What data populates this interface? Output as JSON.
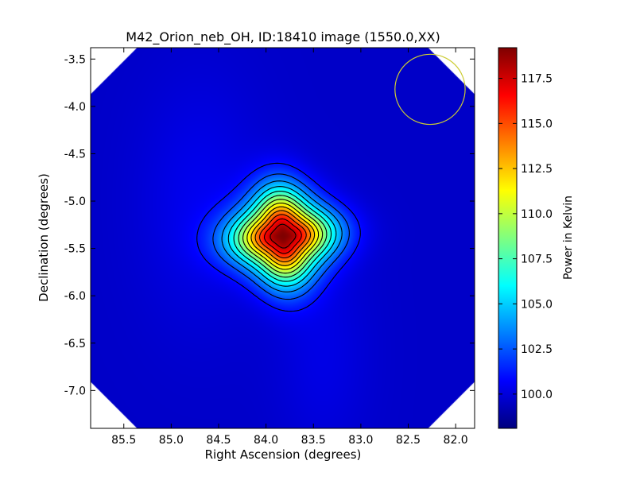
{
  "chart_data": {
    "type": "heatmap",
    "title": "M42_Orion_neb_OH, ID:18410 image (1550.0,XX)",
    "xlabel": "Right Ascension (degrees)",
    "ylabel": "Declination (degrees)",
    "colorbar_label": "Power in Kelvin",
    "colormap": "jet",
    "xlim": [
      85.85,
      81.8
    ],
    "ylim": [
      -7.4,
      -3.38
    ],
    "x_ticks": [
      85.5,
      85.0,
      84.5,
      84.0,
      83.5,
      83.0,
      82.5,
      82.0
    ],
    "x_tick_labels": [
      "85.5",
      "85.0",
      "84.5",
      "84.0",
      "83.5",
      "83.0",
      "82.5",
      "82.0"
    ],
    "y_ticks": [
      -3.5,
      -4.0,
      -4.5,
      -5.0,
      -5.5,
      -6.0,
      -6.5,
      -7.0
    ],
    "y_tick_labels": [
      "-3.5",
      "-4.0",
      "-4.5",
      "-5.0",
      "-5.5",
      "-6.0",
      "-6.5",
      "-7.0"
    ],
    "colorbar_range": [
      98.1,
      119.2
    ],
    "colorbar_ticks": [
      100.0,
      102.5,
      105.0,
      107.5,
      110.0,
      112.5,
      115.0,
      117.5
    ],
    "colorbar_tick_labels": [
      "100.0",
      "102.5",
      "105.0",
      "107.5",
      "110.0",
      "112.5",
      "115.0",
      "117.5"
    ],
    "background_level": 99.6,
    "source": {
      "ra": 83.82,
      "dec": -5.37,
      "peak": 119.0,
      "sigma_ra": 0.32,
      "sigma_dec": 0.3
    },
    "beam_circle": {
      "ra": 82.27,
      "dec": -3.82,
      "radius_deg": 0.37,
      "color": "#cccc33"
    },
    "contour_levels": [
      101.0,
      102.4,
      103.8,
      105.2,
      106.6,
      108.0,
      109.4,
      110.8,
      112.2,
      113.6,
      115.0,
      116.4,
      117.8
    ],
    "grid": false
  }
}
